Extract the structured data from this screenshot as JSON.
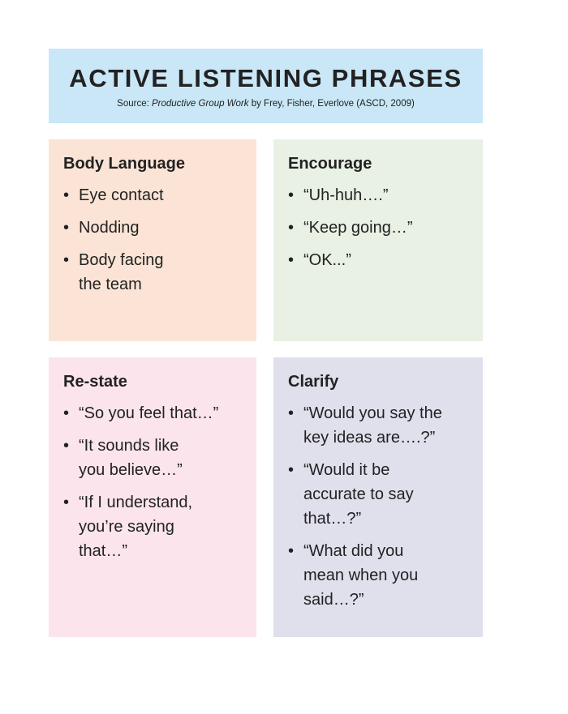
{
  "header": {
    "title": "ACTIVE LISTENING PHRASES",
    "source_prefix": "Source: ",
    "source_book": "Productive Group Work",
    "source_suffix": " by Frey, Fisher, Everlove (ASCD, 2009)",
    "background_color": "#c9e7f7"
  },
  "panels": {
    "body_language": {
      "heading": "Body Language",
      "color": "#fbe4d6",
      "items": [
        "Eye contact",
        "Nodding",
        "Body facing the team"
      ]
    },
    "encourage": {
      "heading": "Encourage",
      "color": "#e8f1e3",
      "items": [
        "“Uh-huh….”",
        "“Keep going…”",
        "“OK...”"
      ]
    },
    "restate": {
      "heading": "Re-state",
      "color": "#fbe4ec",
      "items": [
        "“So you feel that…”",
        "“It sounds like you believe…”",
        "“If I understand, you’re saying that…”"
      ]
    },
    "clarify": {
      "heading": "Clarify",
      "color": "#e0dfec",
      "items": [
        "“Would you say the key ideas are….?”",
        "“Would it be accurate to say that…?”",
        "“What did you mean when you said…?”"
      ]
    }
  },
  "bullet_char": "•"
}
